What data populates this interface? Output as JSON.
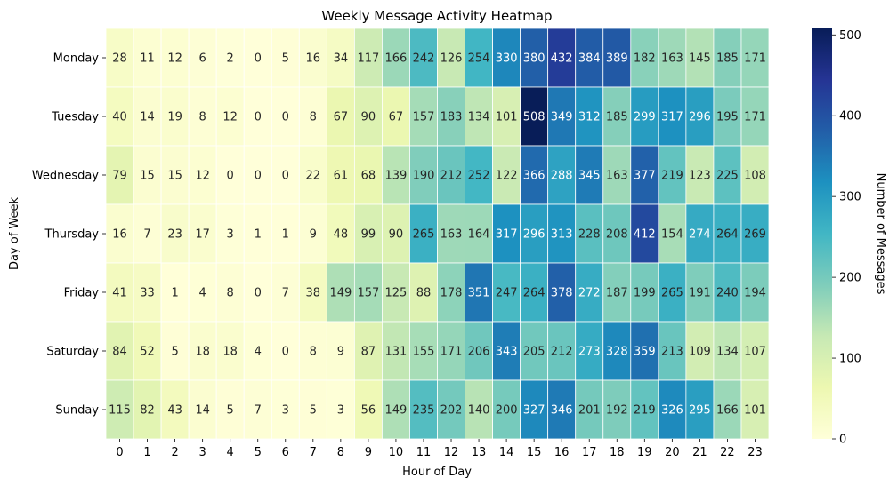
{
  "chart_data": {
    "type": "heatmap",
    "title": "Weekly Message Activity Heatmap",
    "xlabel": "Hour of Day",
    "ylabel": "Day of Week",
    "colorbar_label": "Number of Messages",
    "colormap": "YlGnBu",
    "vmin": 0,
    "vmax": 508,
    "colorbar_ticks": [
      0,
      100,
      200,
      300,
      400,
      500
    ],
    "x_categories": [
      "0",
      "1",
      "2",
      "3",
      "4",
      "5",
      "6",
      "7",
      "8",
      "9",
      "10",
      "11",
      "12",
      "13",
      "14",
      "15",
      "16",
      "17",
      "18",
      "19",
      "20",
      "21",
      "22",
      "23"
    ],
    "y_categories": [
      "Monday",
      "Tuesday",
      "Wednesday",
      "Thursday",
      "Friday",
      "Saturday",
      "Sunday"
    ],
    "values": [
      [
        28,
        11,
        12,
        6,
        2,
        0,
        5,
        16,
        34,
        117,
        166,
        242,
        126,
        254,
        330,
        380,
        432,
        384,
        389,
        182,
        163,
        145,
        185,
        171
      ],
      [
        40,
        14,
        19,
        8,
        12,
        0,
        0,
        8,
        67,
        90,
        67,
        157,
        183,
        134,
        101,
        508,
        349,
        312,
        185,
        299,
        317,
        296,
        195,
        171
      ],
      [
        79,
        15,
        15,
        12,
        0,
        0,
        0,
        22,
        61,
        68,
        139,
        190,
        212,
        252,
        122,
        366,
        288,
        345,
        163,
        377,
        219,
        123,
        225,
        108
      ],
      [
        16,
        7,
        23,
        17,
        3,
        1,
        1,
        9,
        48,
        99,
        90,
        265,
        163,
        164,
        317,
        296,
        313,
        228,
        208,
        412,
        154,
        274,
        264,
        269
      ],
      [
        41,
        33,
        1,
        4,
        8,
        0,
        7,
        38,
        149,
        157,
        125,
        88,
        178,
        351,
        247,
        264,
        378,
        272,
        187,
        199,
        265,
        191,
        240,
        194
      ],
      [
        84,
        52,
        5,
        18,
        18,
        4,
        0,
        8,
        9,
        87,
        131,
        155,
        171,
        206,
        343,
        205,
        212,
        273,
        328,
        359,
        213,
        109,
        134,
        107
      ],
      [
        115,
        82,
        43,
        14,
        5,
        7,
        3,
        5,
        3,
        56,
        149,
        235,
        202,
        140,
        200,
        327,
        346,
        201,
        192,
        219,
        326,
        295,
        166,
        101
      ]
    ]
  }
}
